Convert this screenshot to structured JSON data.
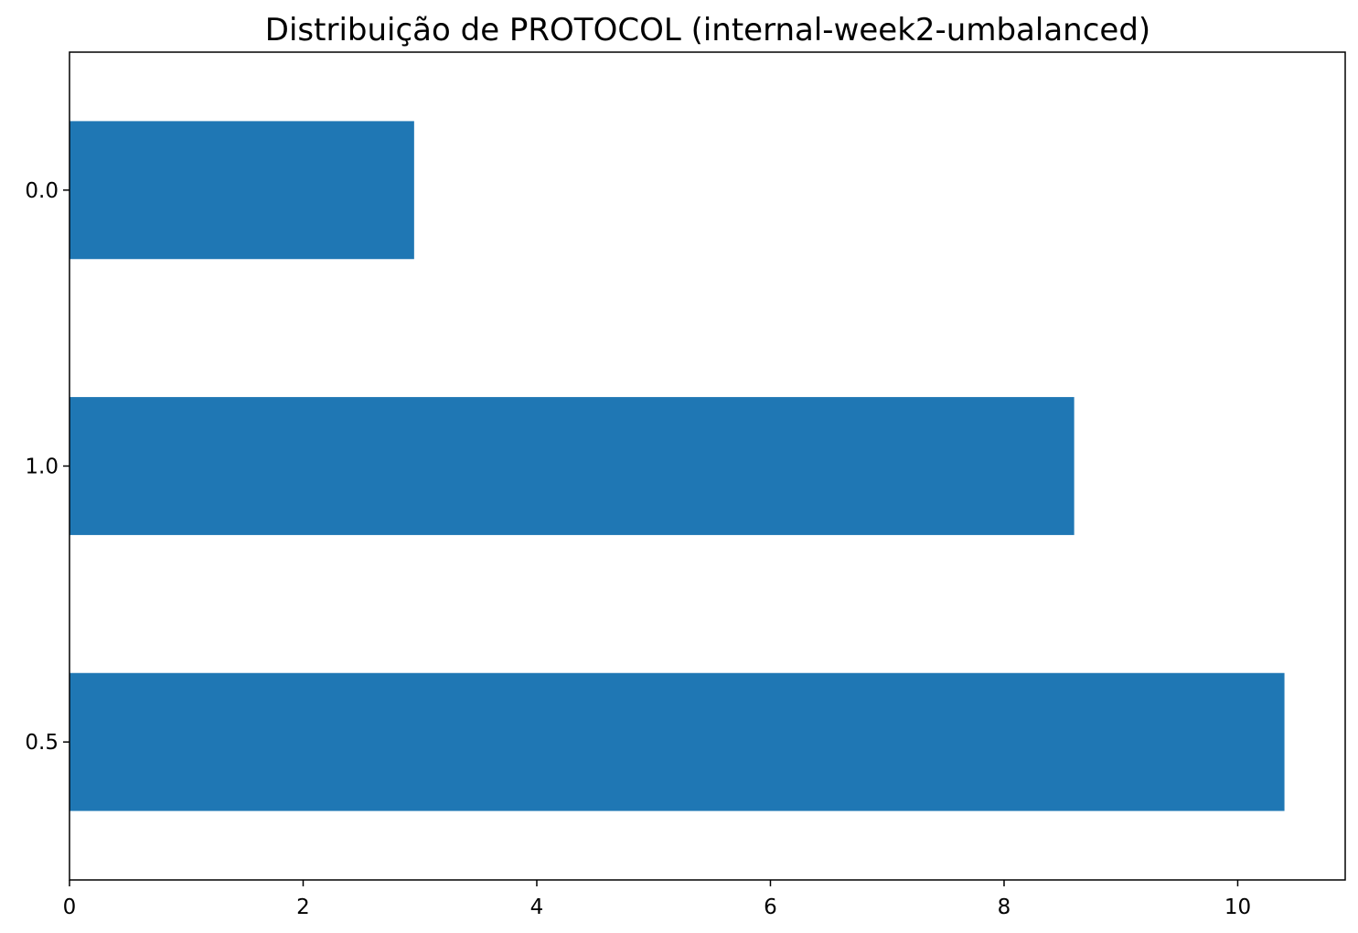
{
  "chart_data": {
    "type": "bar",
    "orientation": "horizontal",
    "title": "Distribuição de PROTOCOL (internal-week2-umbalanced)",
    "xlabel": "",
    "ylabel": "",
    "categories": [
      "0.0",
      "1.0",
      "0.5"
    ],
    "values": [
      2.95,
      8.6,
      10.4
    ],
    "xlim": [
      0,
      10.92
    ],
    "xticks": [
      0,
      2,
      4,
      6,
      8,
      10
    ],
    "grid": false,
    "legend": "none",
    "bar_color": "#1f77b4"
  }
}
